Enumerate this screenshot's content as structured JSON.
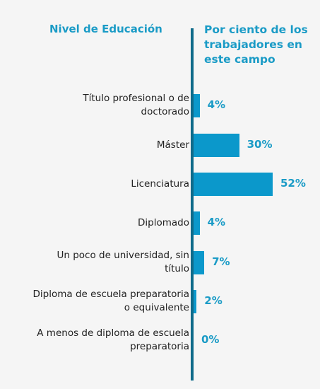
{
  "chart_data": {
    "type": "bar",
    "orientation": "horizontal",
    "category_header": "Nivel de Educación",
    "value_header": "Por ciento de los trabajadores en este campo",
    "categories": [
      "Título profesional o de doctorado",
      "Máster",
      "Licenciatura",
      "Diplomado",
      "Un poco de universidad, sin título",
      "Diploma de escuela preparatoria o equivalente",
      "A menos de diploma de escuela preparatoria"
    ],
    "category_lines": [
      [
        "Título profesional o de",
        "doctorado"
      ],
      [
        "Máster"
      ],
      [
        "Licenciatura"
      ],
      [
        "Diplomado"
      ],
      [
        "Un poco de universidad, sin",
        "título"
      ],
      [
        "Diploma de escuela preparatoria",
        "o equivalente"
      ],
      [
        "A menos de diploma de escuela",
        "preparatoria"
      ]
    ],
    "values": [
      4,
      30,
      52,
      4,
      7,
      2,
      0
    ],
    "value_labels": [
      "4%",
      "30%",
      "52%",
      "4%",
      "7%",
      "2%",
      "0%"
    ],
    "unit": "%",
    "bar_color": "#0b98cb",
    "label_color": "#1a9bc6",
    "axis_color": "#0f6b8a"
  }
}
